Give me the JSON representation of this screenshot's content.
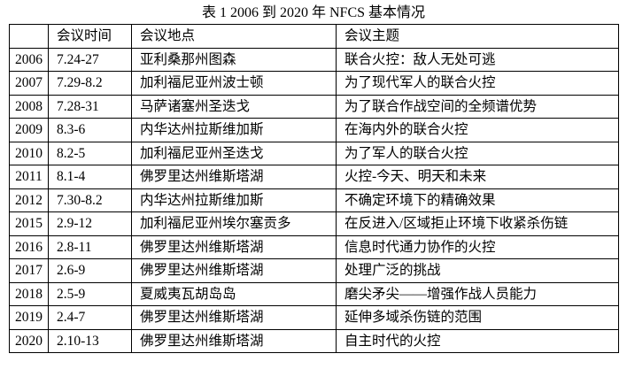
{
  "title": "表 1  2006 到 2020 年 NFCS 基本情况",
  "table": {
    "headers": [
      "",
      "会议时间",
      "会议地点",
      "会议主题"
    ],
    "rows": [
      {
        "year": "2006",
        "time": "7.24-27",
        "place": "亚利桑那州图森",
        "theme": "联合火控：敌人无处可逃"
      },
      {
        "year": "2007",
        "time": "7.29-8.2",
        "place": "加利福尼亚州波士顿",
        "theme": "为了现代军人的联合火控"
      },
      {
        "year": "2008",
        "time": "7.28-31",
        "place": "马萨诸塞州圣迭戈",
        "theme": "为了联合作战空间的全频谱优势"
      },
      {
        "year": "2009",
        "time": "8.3-6",
        "place": "内华达州拉斯维加斯",
        "theme": "在海内外的联合火控"
      },
      {
        "year": "2010",
        "time": "8.2-5",
        "place": "加利福尼亚州圣迭戈",
        "theme": "为了军人的联合火控"
      },
      {
        "year": "2011",
        "time": "8.1-4",
        "place": "佛罗里达州维斯塔湖",
        "theme": "火控-今天、明天和未来"
      },
      {
        "year": "2012",
        "time": "7.30-8.2",
        "place": "内华达州拉斯维加斯",
        "theme": "不确定环境下的精确效果"
      },
      {
        "year": "2015",
        "time": "2.9-12",
        "place": "加利福尼亚州埃尔塞贡多",
        "theme": "在反进入/区域拒止环境下收紧杀伤链"
      },
      {
        "year": "2016",
        "time": "2.8-11",
        "place": "佛罗里达州维斯塔湖",
        "theme": "信息时代通力协作的火控"
      },
      {
        "year": "2017",
        "time": "2.6-9",
        "place": "佛罗里达州维斯塔湖",
        "theme": "处理广泛的挑战"
      },
      {
        "year": "2018",
        "time": "2.5-9",
        "place": "夏威夷瓦胡岛岛",
        "theme": "磨尖矛尖——增强作战人员能力"
      },
      {
        "year": "2019",
        "time": "2.4-7",
        "place": "佛罗里达州维斯塔湖",
        "theme": "延伸多域杀伤链的范围"
      },
      {
        "year": "2020",
        "time": "2.10-13",
        "place": "佛罗里达州维斯塔湖",
        "theme": "自主时代的火控"
      }
    ]
  },
  "colors": {
    "text": "#000000",
    "border": "#000000",
    "background": "#ffffff"
  }
}
